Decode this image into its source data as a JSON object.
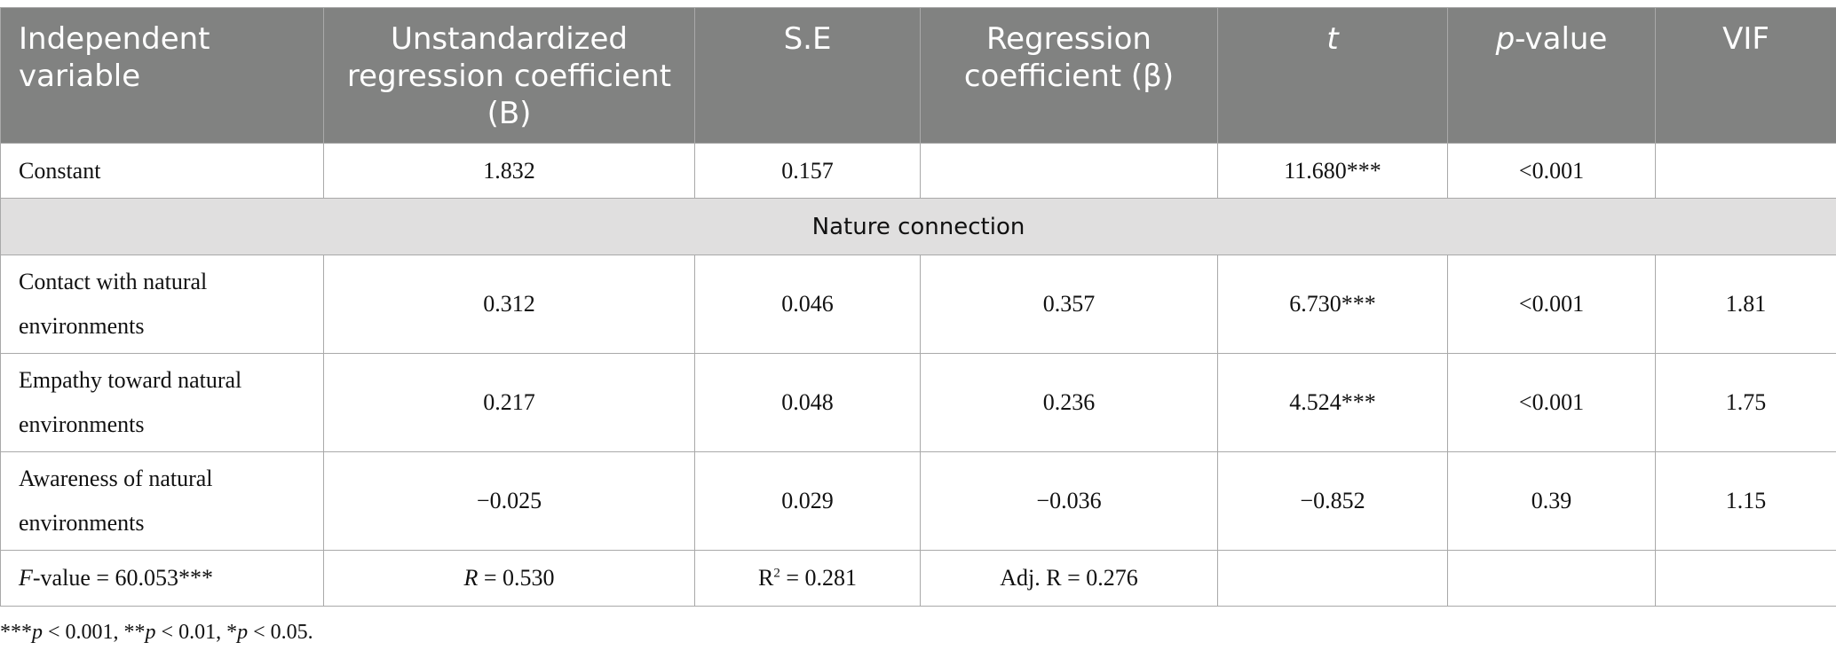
{
  "header": {
    "col1": "Independent variable",
    "col2": "Unstandardized regression coefficient (B)",
    "col3": "S.E",
    "col4": "Regression coefficient (β)",
    "col5": "t",
    "col6_italic": "p",
    "col6_rest": "-value",
    "col7": "VIF"
  },
  "rows": {
    "constant": {
      "label": "Constant",
      "b": "1.832",
      "se": "0.157",
      "beta": "",
      "t": "11.680***",
      "p": "<0.001",
      "vif": ""
    },
    "section": "Nature connection",
    "items": [
      {
        "label": "Contact with natural environments",
        "b": "0.312",
        "se": "0.046",
        "beta": "0.357",
        "t": "6.730***",
        "p": "<0.001",
        "vif": "1.81"
      },
      {
        "label": "Empathy toward natural environments",
        "b": "0.217",
        "se": "0.048",
        "beta": "0.236",
        "t": "4.524***",
        "p": "<0.001",
        "vif": "1.75"
      },
      {
        "label": "Awareness of natural environments",
        "b": "−0.025",
        "se": "0.029",
        "beta": "−0.036",
        "t": "−0.852",
        "p": "0.39",
        "vif": "1.15"
      }
    ],
    "fit": {
      "f_label": "F",
      "f_value": "-value = 60.053***",
      "r_label": "R",
      "r_value": " = 0.530",
      "r2_base": "R",
      "r2_sup": "2",
      "r2_value": " = 0.281",
      "adj_r": "Adj. R = 0.276"
    }
  },
  "note": {
    "p1_stars": "***",
    "p1_rest": " < 0.001, **",
    "p2_rest": " < 0.01, *",
    "p3_rest": " < 0.05.",
    "p_letter": "p"
  }
}
